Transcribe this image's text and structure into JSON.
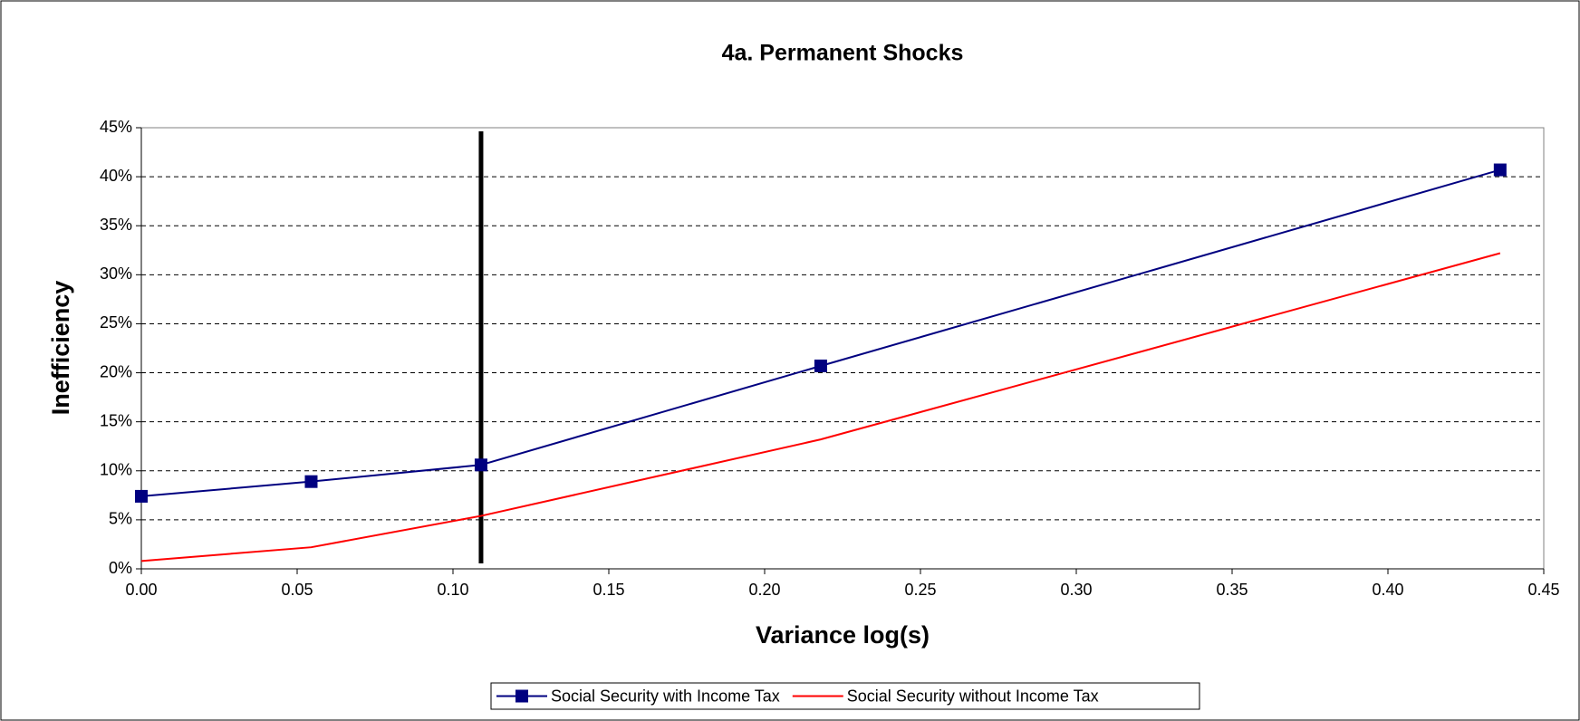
{
  "chart_data": {
    "type": "line",
    "title": "4a. Permanent Shocks",
    "x_label": "Variance log(s)",
    "y_label": "Inefficiency",
    "x": [
      0,
      0.0545,
      0.109,
      0.218,
      0.436
    ],
    "series": [
      {
        "name": "Social Security with Income Tax",
        "color": "#000080",
        "marker": "square",
        "values": [
          7.4,
          8.9,
          10.6,
          20.7,
          40.7
        ]
      },
      {
        "name": "Social Security without Income Tax",
        "color": "#ff0000",
        "values": [
          0.8,
          2.2,
          5.4,
          13.2,
          32.2
        ]
      }
    ],
    "reference_line": {
      "x": 0.109,
      "color": "#000000"
    },
    "xlim": [
      0,
      0.45
    ],
    "xticks": [
      {
        "value": 0,
        "label": "0.00"
      },
      {
        "value": 0.05,
        "label": "0.05"
      },
      {
        "value": 0.1,
        "label": "0.10"
      },
      {
        "value": 0.15,
        "label": "0.15"
      },
      {
        "value": 0.2,
        "label": "0.20"
      },
      {
        "value": 0.25,
        "label": "0.25"
      },
      {
        "value": 0.3,
        "label": "0.30"
      },
      {
        "value": 0.35,
        "label": "0.35"
      },
      {
        "value": 0.4,
        "label": "0.40"
      },
      {
        "value": 0.45,
        "label": "0.45"
      }
    ],
    "ylim": [
      0,
      45
    ],
    "yticks": [
      {
        "value": 0,
        "label": "0%"
      },
      {
        "value": 5,
        "label": "5%"
      },
      {
        "value": 10,
        "label": "10%"
      },
      {
        "value": 15,
        "label": "15%"
      },
      {
        "value": 20,
        "label": "20%"
      },
      {
        "value": 25,
        "label": "25%"
      },
      {
        "value": 30,
        "label": "30%"
      },
      {
        "value": 35,
        "label": "35%"
      },
      {
        "value": 40,
        "label": "40%"
      },
      {
        "value": 45,
        "label": "45%"
      }
    ],
    "grid": true,
    "legend": "bottom"
  }
}
